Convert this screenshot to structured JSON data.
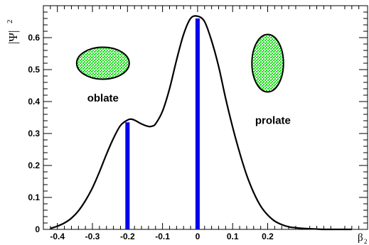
{
  "chart_data": {
    "type": "line",
    "title": "",
    "xlabel": "β",
    "xlabel_sub": "2",
    "ylabel": "|Ψ|",
    "ylabel_sup": "2",
    "xlim": [
      -0.44,
      0.485
    ],
    "ylim": [
      0,
      0.7
    ],
    "x_ticks": [
      -0.4,
      -0.3,
      -0.2,
      -0.1,
      0,
      0.1,
      0.2
    ],
    "x_tick_labels": [
      "-0.4",
      "-0.3",
      "-0.2",
      "-0.1",
      "0",
      "0.1",
      "0.2"
    ],
    "y_ticks": [
      0,
      0.1,
      0.2,
      0.3,
      0.4,
      0.5,
      0.6
    ],
    "y_tick_labels": [
      "0",
      "0.1",
      "0.2",
      "0.3",
      "0.4",
      "0.5",
      "0.6"
    ],
    "grid": false,
    "series": [
      {
        "type": "line",
        "color": "#000000",
        "x": [
          -0.42,
          -0.4,
          -0.38,
          -0.36,
          -0.34,
          -0.32,
          -0.3,
          -0.28,
          -0.26,
          -0.24,
          -0.22,
          -0.2,
          -0.19,
          -0.18,
          -0.16,
          -0.14,
          -0.13,
          -0.12,
          -0.1,
          -0.08,
          -0.06,
          -0.04,
          -0.02,
          0.0,
          0.02,
          0.04,
          0.06,
          0.08,
          0.1,
          0.12,
          0.14,
          0.16,
          0.18,
          0.2,
          0.22,
          0.24,
          0.26,
          0.28,
          0.3,
          0.32,
          0.34,
          0.36,
          0.38,
          0.4,
          0.42,
          0.44
        ],
        "y": [
          0.003,
          0.01,
          0.02,
          0.035,
          0.058,
          0.09,
          0.13,
          0.18,
          0.235,
          0.285,
          0.325,
          0.342,
          0.345,
          0.342,
          0.33,
          0.322,
          0.323,
          0.33,
          0.37,
          0.44,
          0.53,
          0.61,
          0.66,
          0.667,
          0.65,
          0.59,
          0.51,
          0.41,
          0.32,
          0.24,
          0.17,
          0.115,
          0.073,
          0.045,
          0.026,
          0.015,
          0.008,
          0.005,
          0.003,
          0.002,
          0.001,
          0.0,
          0.0,
          0.0,
          0.0,
          0.0
        ]
      },
      {
        "type": "bar",
        "color": "#0000ee",
        "x": [
          -0.2,
          0.0
        ],
        "y": [
          0.335,
          0.66
        ]
      }
    ],
    "annotations": [
      {
        "text": "oblate",
        "x": -0.27,
        "y": 0.4
      },
      {
        "text": "prolate",
        "x": 0.215,
        "y": 0.33
      }
    ],
    "shapes": [
      {
        "kind": "ellipse",
        "name": "oblate-shape",
        "cx": -0.27,
        "cy": 0.52,
        "rx_data": 0.075,
        "ry_data": 0.05,
        "fill": "#22dd22"
      },
      {
        "kind": "ellipse",
        "name": "prolate-shape",
        "cx": 0.2,
        "cy": 0.52,
        "rx_data": 0.045,
        "ry_data": 0.09,
        "fill": "#22dd22"
      }
    ]
  }
}
